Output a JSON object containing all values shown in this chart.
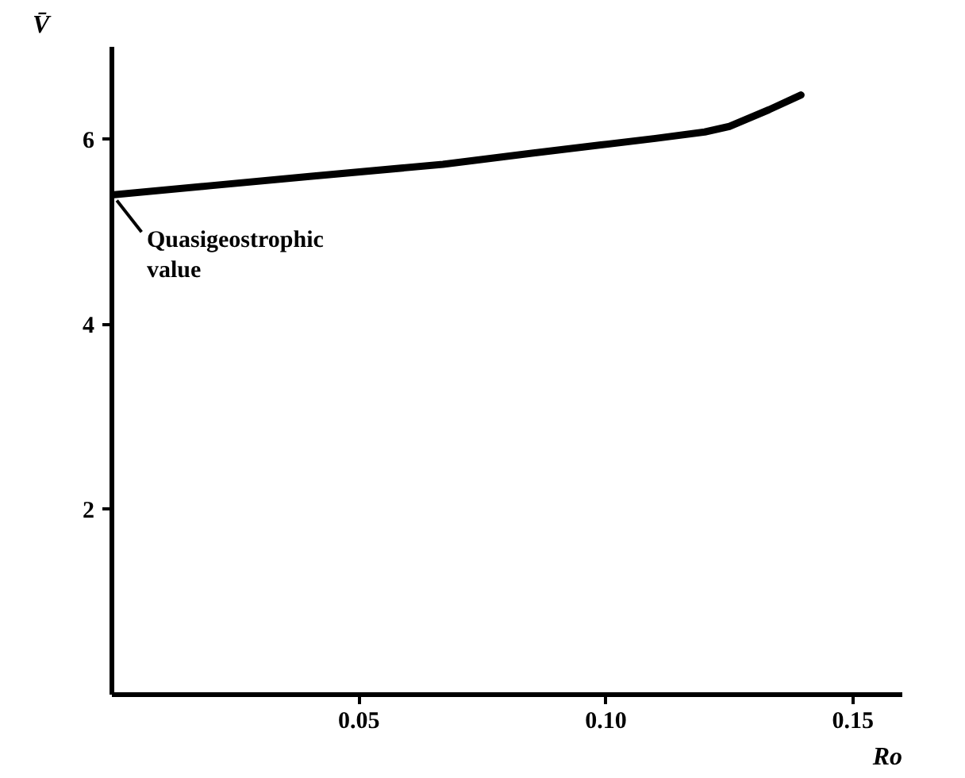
{
  "chart_data": {
    "type": "line",
    "xlabel": "Ro",
    "ylabel": "V̄",
    "x": [
      0,
      0.02,
      0.04,
      0.067,
      0.085,
      0.099,
      0.11,
      0.12,
      0.125,
      0.133,
      0.1395
    ],
    "series": [
      {
        "color": "#000000",
        "values": [
          5.4,
          5.5,
          5.6,
          5.73,
          5.85,
          5.94,
          6.01,
          6.08,
          6.14,
          6.32,
          6.48
        ]
      }
    ],
    "xlim": [
      0,
      0.16
    ],
    "ylim": [
      0,
      7
    ],
    "xticks": [
      {
        "value": 0.05,
        "label": "0.05"
      },
      {
        "value": 0.1,
        "label": "0.10"
      },
      {
        "value": 0.15,
        "label": "0.15"
      }
    ],
    "yticks": [
      2,
      4,
      6
    ],
    "annotations": [
      {
        "text": "Quasigeostrophic\nvalue",
        "x": 0,
        "y": 5.4
      }
    ],
    "grid": false,
    "marker": "none",
    "line_style": "solid"
  }
}
